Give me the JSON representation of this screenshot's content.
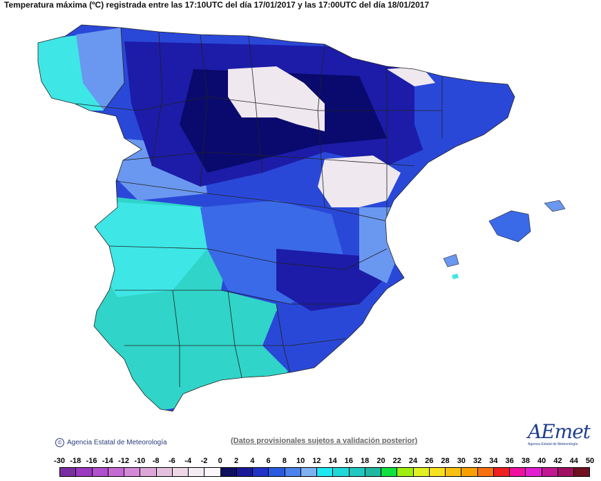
{
  "title": "Temperatura máxima (ºC) registrada entre las 17:10UTC del día 17/01/2017 y las 17:00UTC del día 18/01/2017",
  "footer": {
    "copyright": "Agencia Estatal de Meteorología",
    "disclaimer": "(Datos provisionales sujetos a validación posterior)",
    "logo_text": "AEmet",
    "logo_sub": "Agencia Estatal de Meteorología"
  },
  "legend": {
    "labels": [
      "-30",
      "-18",
      "-16",
      "-14",
      "-12",
      "-10",
      "-8",
      "-6",
      "-4",
      "-2",
      "0",
      "2",
      "4",
      "6",
      "8",
      "10",
      "12",
      "14",
      "16",
      "18",
      "20",
      "22",
      "24",
      "26",
      "28",
      "30",
      "32",
      "34",
      "36",
      "38",
      "40",
      "42",
      "44",
      "50"
    ],
    "colors": [
      "#7a2ea0",
      "#9b39c0",
      "#b24fcc",
      "#c46bd2",
      "#d389d8",
      "#dca6d8",
      "#e3c1df",
      "#eed8e8",
      "#f4ecf2",
      "#fbf8fb",
      "#101060",
      "#1a1a98",
      "#2233c8",
      "#2a5ae0",
      "#4a82ee",
      "#7fb0f0",
      "#20e8f0",
      "#20d8d8",
      "#20c8c0",
      "#20b8a0",
      "#10e040",
      "#a0ee10",
      "#e0f020",
      "#f8e020",
      "#f8c010",
      "#f8a000",
      "#f87010",
      "#f02020",
      "#f010a0",
      "#e020d0",
      "#c01890",
      "#a01060",
      "#701020"
    ]
  },
  "map": {
    "colors": {
      "deep": "#0a0a6e",
      "navy": "#1c1ca8",
      "blue": "#2a48d8",
      "mid": "#3a6ae8",
      "light": "#6a98f0",
      "cyan": "#3ee6e6",
      "teal": "#30d4c8",
      "snow": "#efe8ee",
      "border": "#202020"
    }
  }
}
